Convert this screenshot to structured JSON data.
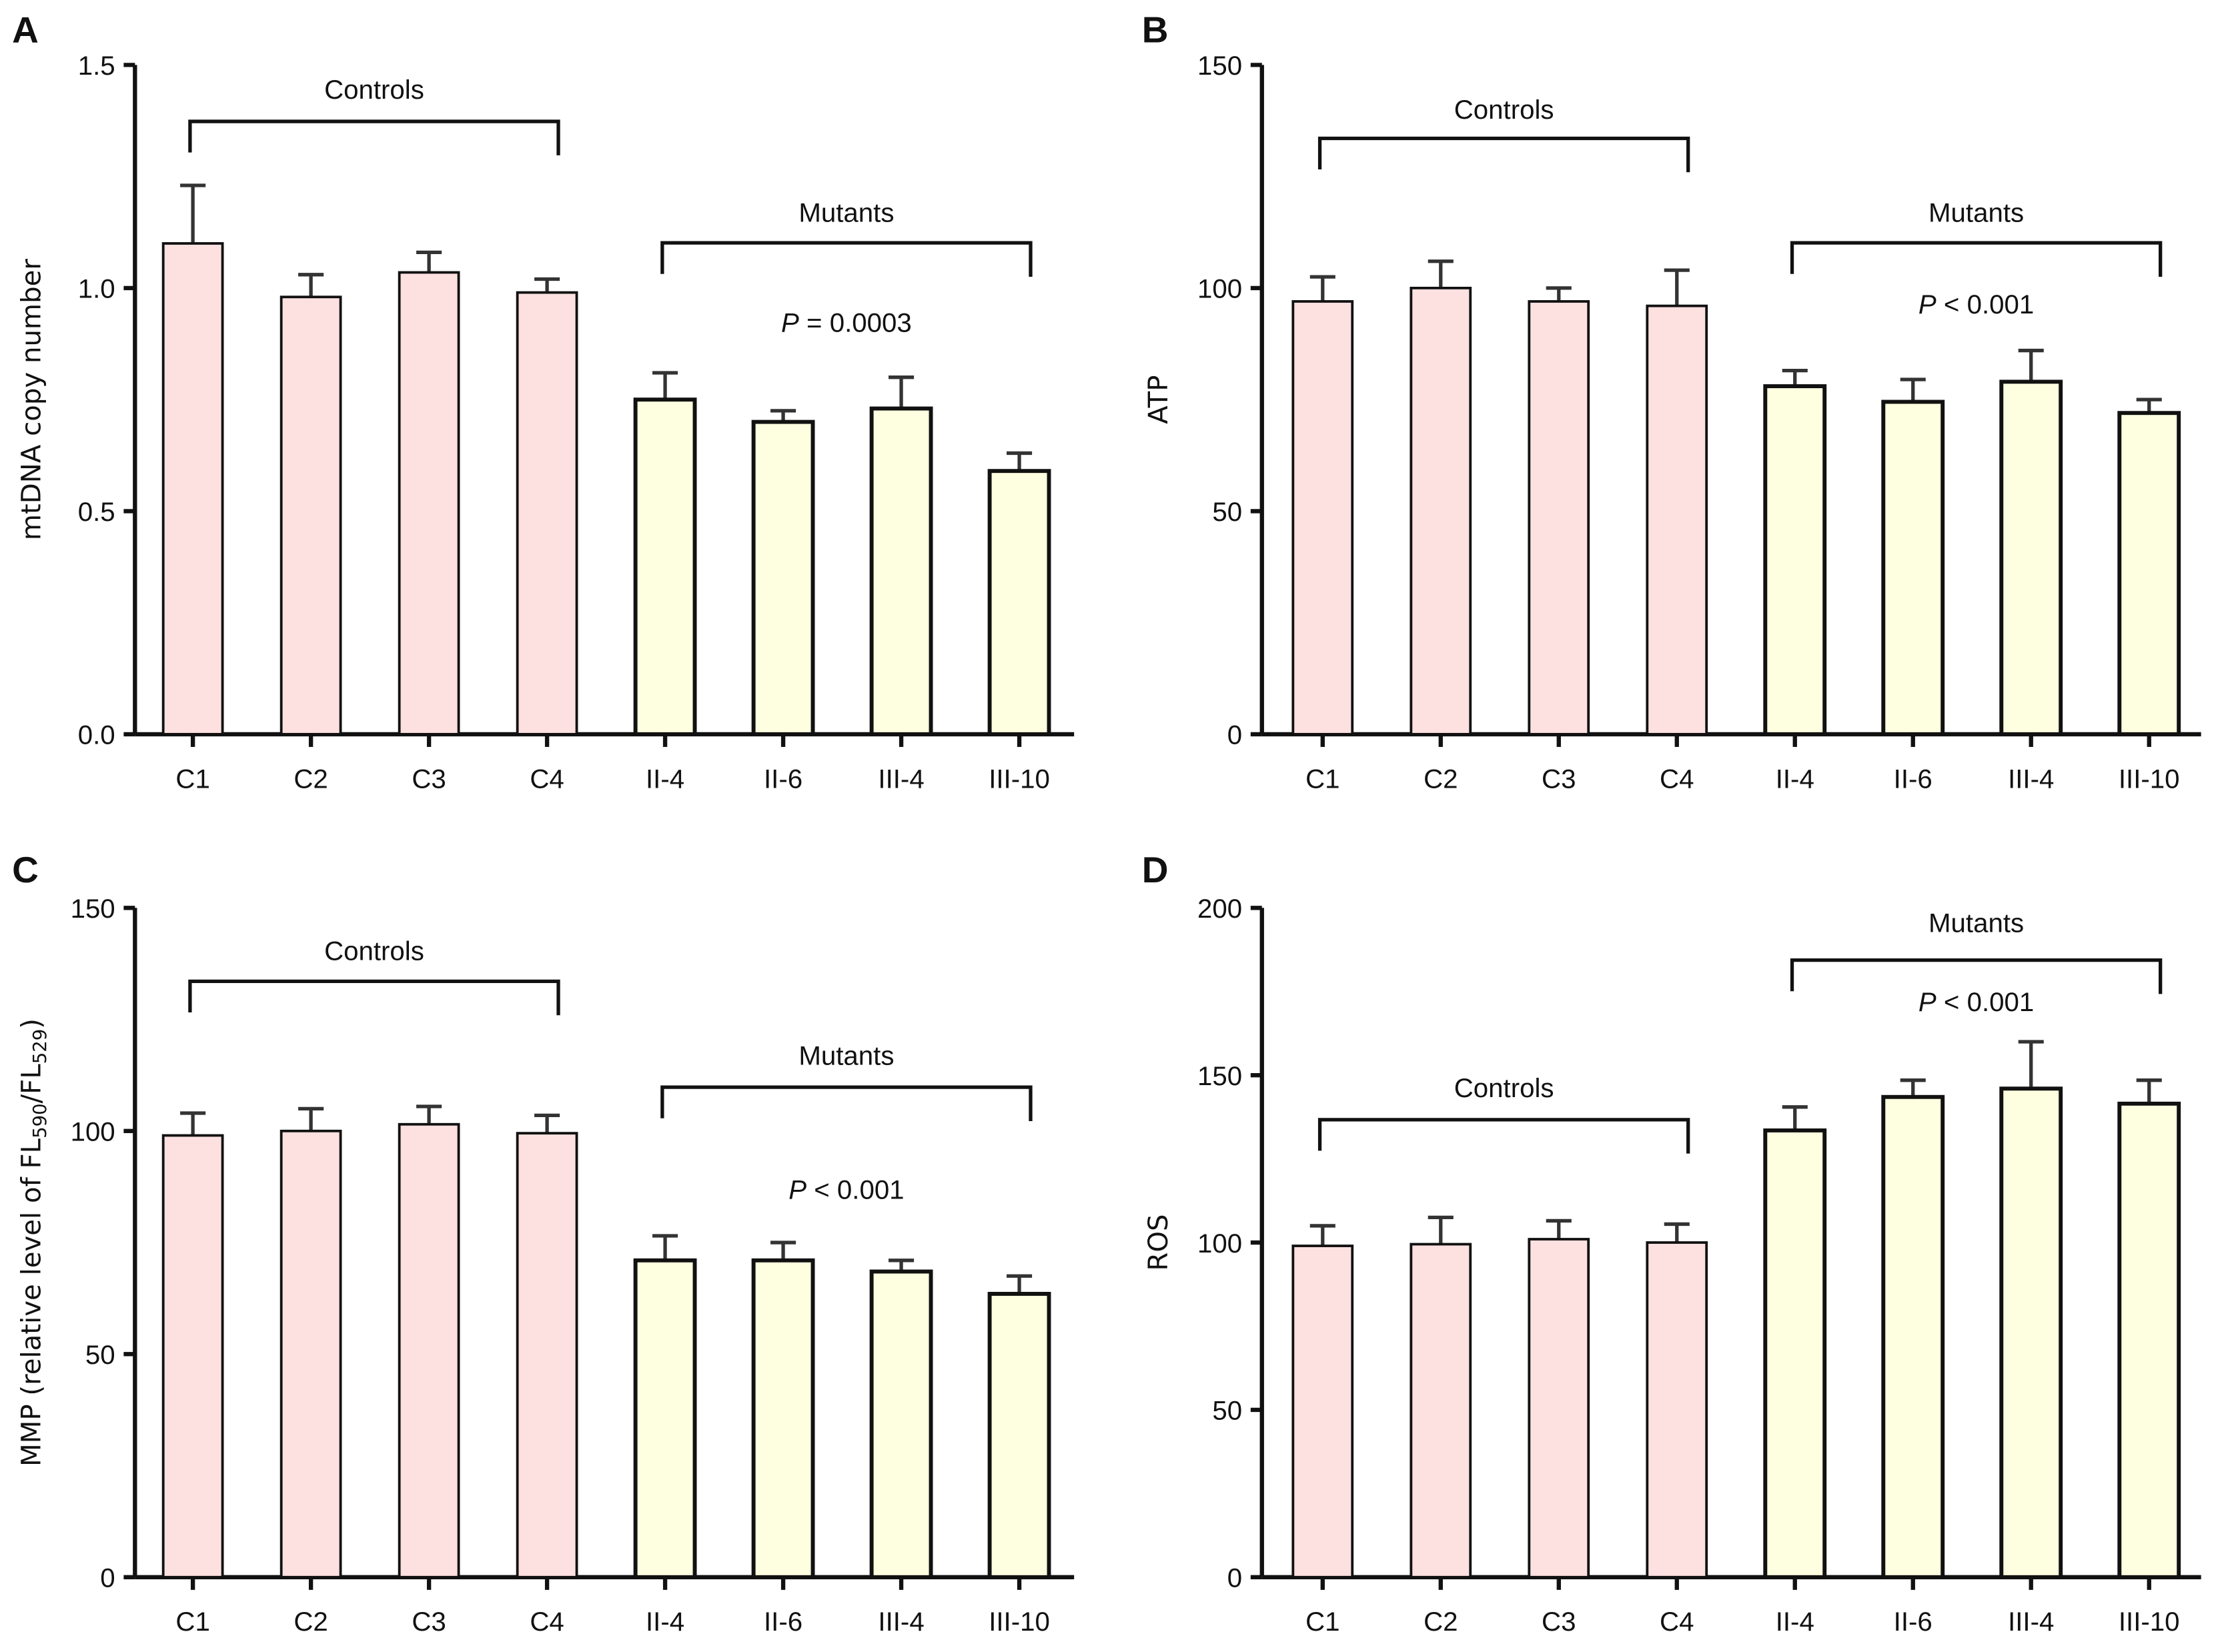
{
  "colors": {
    "controls_fill": "#fde0e0",
    "mutants_fill": "#fefee0",
    "stroke": "#111111",
    "error": "#333333"
  },
  "chart_data": [
    {
      "panel": "A",
      "type": "bar",
      "categories": [
        "C1",
        "C2",
        "C3",
        "C4",
        "II-4",
        "II-6",
        "III-4",
        "III-10"
      ],
      "values": [
        1.1,
        0.98,
        1.035,
        0.99,
        0.75,
        0.7,
        0.73,
        0.59
      ],
      "error_upper": [
        1.23,
        1.03,
        1.08,
        1.02,
        0.81,
        0.725,
        0.8,
        0.63
      ],
      "ylabel": [
        {
          "t": "mtDNA copy number"
        }
      ],
      "ylim": [
        0,
        1.5
      ],
      "yticks": [
        "0.0",
        "0.5",
        "1.0",
        "1.5"
      ],
      "ytick_values": [
        0,
        0.5,
        1.0,
        1.5
      ],
      "groups": [
        {
          "label": "Controls",
          "from": 0,
          "to": 3
        },
        {
          "label": "Mutants",
          "from": 4,
          "to": 7
        }
      ],
      "annotation": {
        "italic": "P",
        "rest": " = 0.0003"
      }
    },
    {
      "panel": "B",
      "type": "bar",
      "categories": [
        "C1",
        "C2",
        "C3",
        "C4",
        "II-4",
        "II-6",
        "III-4",
        "III-10"
      ],
      "values": [
        97,
        100,
        97,
        96,
        78,
        74.5,
        79,
        72
      ],
      "error_upper": [
        102.5,
        106,
        100,
        104,
        81.5,
        79.5,
        86,
        75
      ],
      "ylabel": [
        {
          "t": "ATP"
        }
      ],
      "ylim": [
        0,
        150
      ],
      "yticks": [
        "0",
        "50",
        "100",
        "150"
      ],
      "ytick_values": [
        0,
        50,
        100,
        150
      ],
      "groups": [
        {
          "label": "Controls",
          "from": 0,
          "to": 3
        },
        {
          "label": "Mutants",
          "from": 4,
          "to": 7
        }
      ],
      "annotation": {
        "italic": "P",
        "rest": " < 0.001"
      }
    },
    {
      "panel": "C",
      "type": "bar",
      "categories": [
        "C1",
        "C2",
        "C3",
        "C4",
        "II-4",
        "II-6",
        "III-4",
        "III-10"
      ],
      "values": [
        99,
        100,
        101.5,
        99.5,
        71,
        71,
        68.5,
        63.5
      ],
      "error_upper": [
        104,
        105,
        105.5,
        103.5,
        76.5,
        75,
        71,
        67.5
      ],
      "ylabel": [
        {
          "t": "MMP (relative level of FL"
        },
        {
          "t": "590",
          "sub": true
        },
        {
          "t": "/FL"
        },
        {
          "t": "529",
          "sub": true
        },
        {
          "t": ")"
        }
      ],
      "ylim": [
        0,
        150
      ],
      "yticks": [
        "0",
        "50",
        "100",
        "150"
      ],
      "ytick_values": [
        0,
        50,
        100,
        150
      ],
      "groups": [
        {
          "label": "Controls",
          "from": 0,
          "to": 3
        },
        {
          "label": "Mutants",
          "from": 4,
          "to": 7
        }
      ],
      "annotation": {
        "italic": "P",
        "rest": " < 0.001"
      }
    },
    {
      "panel": "D",
      "type": "bar",
      "categories": [
        "C1",
        "C2",
        "C3",
        "C4",
        "II-4",
        "II-6",
        "III-4",
        "III-10"
      ],
      "values": [
        99,
        99.5,
        101,
        100,
        133.5,
        143.5,
        146,
        141.5
      ],
      "error_upper": [
        105,
        107.5,
        106.5,
        105.5,
        140.5,
        148.5,
        160,
        148.5
      ],
      "ylabel": [
        {
          "t": "ROS"
        }
      ],
      "ylim": [
        0,
        200
      ],
      "yticks": [
        "0",
        "50",
        "100",
        "150",
        "200"
      ],
      "ytick_values": [
        0,
        50,
        100,
        150,
        200
      ],
      "groups": [
        {
          "label": "Controls",
          "from": 0,
          "to": 3
        },
        {
          "label": "Mutants",
          "from": 4,
          "to": 7
        }
      ],
      "annotation": {
        "italic": "P",
        "rest": " < 0.001"
      }
    }
  ]
}
